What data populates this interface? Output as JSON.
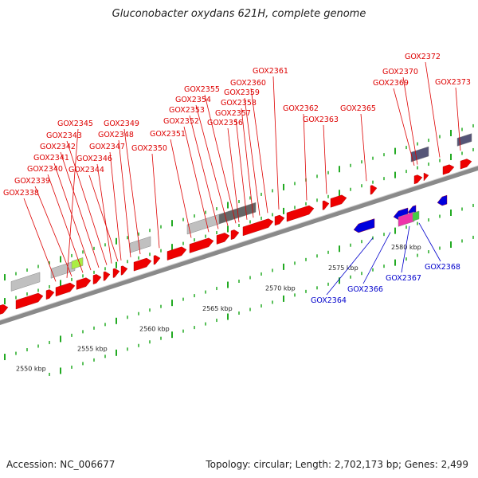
{
  "title": "Gluconobacter oxydans 621H, complete genome",
  "accession": "Accession: NC_006677",
  "summary": "Topology: circular; Length: 2,702,173 bp; Genes: 2,499",
  "colors": {
    "forward_gene": "#ee0000",
    "reverse_gene": "#0000dd",
    "label_forward": "#dd0000",
    "label_reverse": "#0000cc",
    "backbone": "#888888",
    "tick": "#22aa22",
    "pseudo": "#c0c0c0",
    "rna": "#555577"
  },
  "kbp_labels": [
    "2550 kbp",
    "2555 kbp",
    "2560 kbp",
    "2565 kbp",
    "2570 kbp",
    "2575 kbp",
    "2580 kbp"
  ],
  "forward_labels": [
    "GOX2338",
    "GOX2339",
    "GOX2340",
    "GOX2341",
    "GOX2342",
    "GOX2343",
    "GOX2344",
    "GOX2345",
    "GOX2346",
    "GOX2347",
    "GOX2348",
    "GOX2349",
    "GOX2350",
    "GOX2351",
    "GOX2352",
    "GOX2353",
    "GOX2354",
    "GOX2355",
    "GOX2356",
    "GOX2357",
    "GOX2358",
    "GOX2359",
    "GOX2360",
    "GOX2361",
    "GOX2362",
    "GOX2363",
    "GOX2365",
    "GOX2369",
    "GOX2370",
    "GOX2372",
    "GOX2373"
  ],
  "reverse_labels": [
    "GOX2364",
    "GOX2366",
    "GOX2367",
    "GOX2368"
  ]
}
